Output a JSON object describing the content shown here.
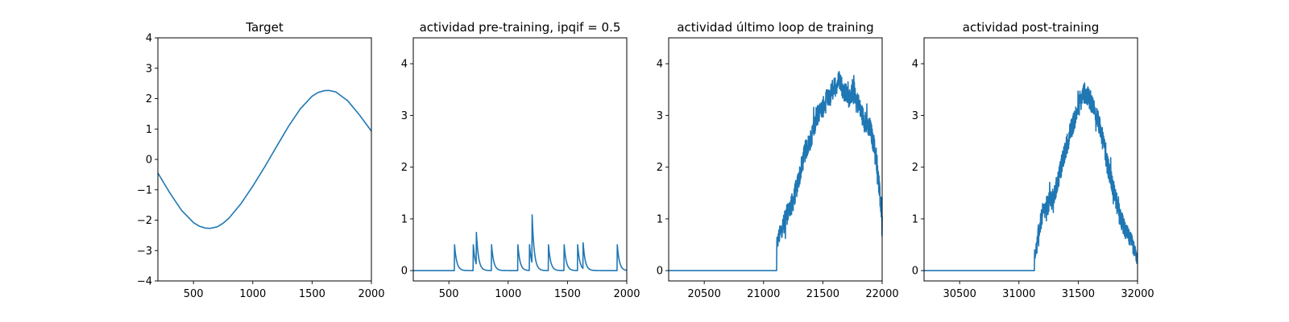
{
  "chart_data": [
    {
      "type": "line",
      "title": "Target",
      "xlabel": "",
      "ylabel": "",
      "xlim": [
        200,
        2000
      ],
      "ylim": [
        -4,
        4
      ],
      "xticks": [
        500,
        1000,
        1500,
        2000
      ],
      "yticks": [
        -4,
        -3,
        -2,
        -1,
        0,
        1,
        2,
        3,
        4
      ],
      "grid": false,
      "color": "#1f77b4",
      "series": [
        {
          "x": [
            200,
            300,
            400,
            500,
            550,
            600,
            640,
            700,
            750,
            800,
            900,
            1000,
            1100,
            1200,
            1300,
            1400,
            1500,
            1550,
            1600,
            1640,
            1700,
            1800,
            1900,
            2000
          ],
          "values": [
            -0.45,
            -1.1,
            -1.68,
            -2.08,
            -2.2,
            -2.26,
            -2.27,
            -2.22,
            -2.1,
            -1.93,
            -1.46,
            -0.88,
            -0.25,
            0.42,
            1.08,
            1.66,
            2.08,
            2.2,
            2.26,
            2.27,
            2.22,
            1.93,
            1.46,
            0.93
          ]
        }
      ]
    },
    {
      "type": "line",
      "title": "actividad pre-training, ipqif = 0.5",
      "xlabel": "",
      "ylabel": "",
      "xlim": [
        200,
        2000
      ],
      "ylim": [
        -0.2,
        4.5
      ],
      "xticks": [
        500,
        1000,
        1500,
        2000
      ],
      "yticks": [
        0,
        1,
        2,
        3,
        4
      ],
      "grid": false,
      "color": "#1f77b4",
      "series": [
        {
          "baseline": 0,
          "spikes": [
            {
              "x": 548,
              "peak": 0.5
            },
            {
              "x": 706,
              "peak": 0.5
            },
            {
              "x": 732,
              "peak": 0.62
            },
            {
              "x": 860,
              "peak": 0.5
            },
            {
              "x": 1082,
              "peak": 0.5
            },
            {
              "x": 1180,
              "peak": 0.5
            },
            {
              "x": 1202,
              "peak": 0.93
            },
            {
              "x": 1340,
              "peak": 0.5
            },
            {
              "x": 1472,
              "peak": 0.5
            },
            {
              "x": 1586,
              "peak": 0.5
            },
            {
              "x": 1632,
              "peak": 0.5
            },
            {
              "x": 1920,
              "peak": 0.5
            }
          ],
          "decay": 18
        }
      ]
    },
    {
      "type": "line",
      "title": "actividad último loop de training",
      "xlabel": "",
      "ylabel": "",
      "xlim": [
        20200,
        22000
      ],
      "ylim": [
        -0.2,
        4.5
      ],
      "xticks": [
        20500,
        21000,
        21500,
        22000
      ],
      "yticks": [
        0,
        1,
        2,
        3,
        4
      ],
      "grid": false,
      "color": "#1f77b4",
      "series": [
        {
          "x": [
            20200,
            21110,
            21112,
            21130,
            21150,
            21170,
            21200,
            21250,
            21300,
            21350,
            21400,
            21450,
            21500,
            21550,
            21600,
            21640,
            21680,
            21720,
            21760,
            21800,
            21850,
            21900,
            21950,
            22000
          ],
          "values": [
            0,
            0,
            0.5,
            0.65,
            0.8,
            0.9,
            1.1,
            1.35,
            1.8,
            2.3,
            2.55,
            3.0,
            3.15,
            3.35,
            3.55,
            3.7,
            3.45,
            3.35,
            3.5,
            3.2,
            2.9,
            2.75,
            2.2,
            1.05
          ],
          "noise": 0.2
        }
      ]
    },
    {
      "type": "line",
      "title": "actividad post-training",
      "xlabel": "",
      "ylabel": "",
      "xlim": [
        30200,
        32000
      ],
      "ylim": [
        -0.2,
        4.5
      ],
      "xticks": [
        30500,
        31000,
        31500,
        32000
      ],
      "yticks": [
        0,
        1,
        2,
        3,
        4
      ],
      "grid": false,
      "color": "#1f77b4",
      "series": [
        {
          "x": [
            30200,
            31130,
            31132,
            31150,
            31170,
            31200,
            31250,
            31300,
            31350,
            31400,
            31450,
            31500,
            31550,
            31600,
            31650,
            31700,
            31750,
            31800,
            31850,
            31900,
            31950,
            32000
          ],
          "values": [
            0,
            0,
            0.35,
            0.45,
            0.8,
            1.1,
            1.3,
            1.45,
            1.95,
            2.4,
            2.8,
            3.15,
            3.45,
            3.3,
            3.05,
            2.6,
            2.0,
            1.55,
            1.05,
            0.75,
            0.55,
            0.2
          ],
          "noise": 0.2
        }
      ]
    }
  ]
}
